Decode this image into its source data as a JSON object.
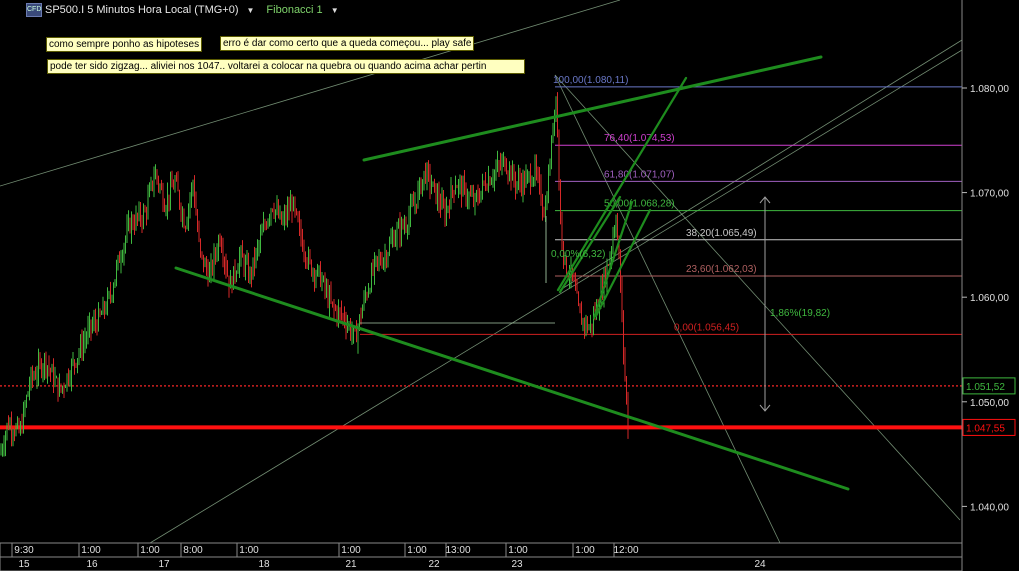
{
  "header": {
    "icon": "cfd-icon",
    "title": "SP500.I 5 Minutos Hora Local (TMG+0)",
    "fibonacci_label": "Fibonacci 1"
  },
  "notes": [
    "como sempre ponho as hipoteses",
    "erro é dar como certo que a queda começou... play safe",
    "pode ter sido zigzag... aliviei nos 1047.. voltarei a colocar na quebra ou quando acima achar pertin"
  ],
  "colors": {
    "background": "#000000",
    "candle_up": "#3fb83f",
    "candle_down": "#d62828",
    "trendline": "#1e8c1e",
    "support": "#ff1010",
    "grid_line": "#8fb08f"
  },
  "chart_data": {
    "type": "candlestick",
    "y_axis": {
      "range": [
        1.0365,
        1.0865
      ],
      "ticks": [
        "1.080,00",
        "1.070,00",
        "1.060,00",
        "1.050,00",
        "1.040,00"
      ],
      "tick_values": [
        1.08,
        1.07,
        1.06,
        1.05,
        1.04
      ]
    },
    "x_axis": {
      "time_labels": [
        "9:30",
        "1:00",
        "1:00",
        "8:00",
        "1:00",
        "1:00",
        "1:00",
        "13:00",
        "1:00",
        "1:00",
        "12:00"
      ],
      "day_labels": [
        "15",
        "16",
        "17",
        "18",
        "21",
        "22",
        "23",
        "24"
      ]
    },
    "price_path": [
      [
        0,
        1.045
      ],
      [
        8,
        1.048
      ],
      [
        20,
        1.047
      ],
      [
        30,
        1.052
      ],
      [
        45,
        1.054
      ],
      [
        60,
        1.051
      ],
      [
        75,
        1.054
      ],
      [
        90,
        1.057
      ],
      [
        100,
        1.058
      ],
      [
        110,
        1.06
      ],
      [
        120,
        1.064
      ],
      [
        130,
        1.067
      ],
      [
        145,
        1.068
      ],
      [
        155,
        1.072
      ],
      [
        165,
        1.069
      ],
      [
        175,
        1.071
      ],
      [
        185,
        1.067
      ],
      [
        193,
        1.071
      ],
      [
        200,
        1.064
      ],
      [
        210,
        1.062
      ],
      [
        220,
        1.066
      ],
      [
        230,
        1.061
      ],
      [
        240,
        1.064
      ],
      [
        250,
        1.062
      ],
      [
        262,
        1.066
      ],
      [
        272,
        1.069
      ],
      [
        282,
        1.067
      ],
      [
        292,
        1.069
      ],
      [
        300,
        1.066
      ],
      [
        310,
        1.063
      ],
      [
        320,
        1.062
      ],
      [
        332,
        1.059
      ],
      [
        345,
        1.058
      ],
      [
        355,
        1.056
      ],
      [
        365,
        1.06
      ],
      [
        375,
        1.063
      ],
      [
        385,
        1.064
      ],
      [
        395,
        1.066
      ],
      [
        405,
        1.067
      ],
      [
        415,
        1.069
      ],
      [
        425,
        1.072
      ],
      [
        435,
        1.07
      ],
      [
        445,
        1.068
      ],
      [
        455,
        1.071
      ],
      [
        465,
        1.07
      ],
      [
        475,
        1.069
      ],
      [
        485,
        1.071
      ],
      [
        495,
        1.072
      ],
      [
        505,
        1.073
      ],
      [
        515,
        1.071
      ],
      [
        525,
        1.071
      ],
      [
        535,
        1.072
      ],
      [
        545,
        1.068
      ],
      [
        552,
        1.075
      ],
      [
        556,
        1.08
      ],
      [
        560,
        1.068
      ],
      [
        565,
        1.063
      ],
      [
        572,
        1.062
      ],
      [
        580,
        1.058
      ],
      [
        590,
        1.057
      ],
      [
        600,
        1.06
      ],
      [
        610,
        1.064
      ],
      [
        616,
        1.068
      ],
      [
        620,
        1.062
      ],
      [
        624,
        1.054
      ],
      [
        628,
        1.0475
      ]
    ],
    "fibonacci_levels": [
      {
        "label": "100,00(1.080,11)",
        "value": 1.08011,
        "color": "#6a78c8"
      },
      {
        "label": "76,40(1.074,53)",
        "value": 1.07453,
        "color": "#d040d0"
      },
      {
        "label": "61,80(1.071,07)",
        "value": 1.07107,
        "color": "#a060c0"
      },
      {
        "label": "50,00(1.068,28)",
        "value": 1.06828,
        "color": "#3fb83f"
      },
      {
        "label": "38,20(1.065,49)",
        "value": 1.06549,
        "color": "#c8c8c8"
      },
      {
        "label": "23,60(1.062,03)",
        "value": 1.06203,
        "color": "#b06060"
      },
      {
        "label": "0,00(1.056,45)",
        "value": 1.05645,
        "color": "#d02020"
      }
    ],
    "price_labels": [
      {
        "label": "1.051,52",
        "value": 1.05152,
        "color": "#3fb83f"
      },
      {
        "label": "1.047,55",
        "value": 1.04755,
        "color": "#ff1010"
      }
    ],
    "annotations": {
      "retracement_pct": "1,86%(19,82)",
      "fib_zero_label": "0,00%(6,32)"
    }
  }
}
